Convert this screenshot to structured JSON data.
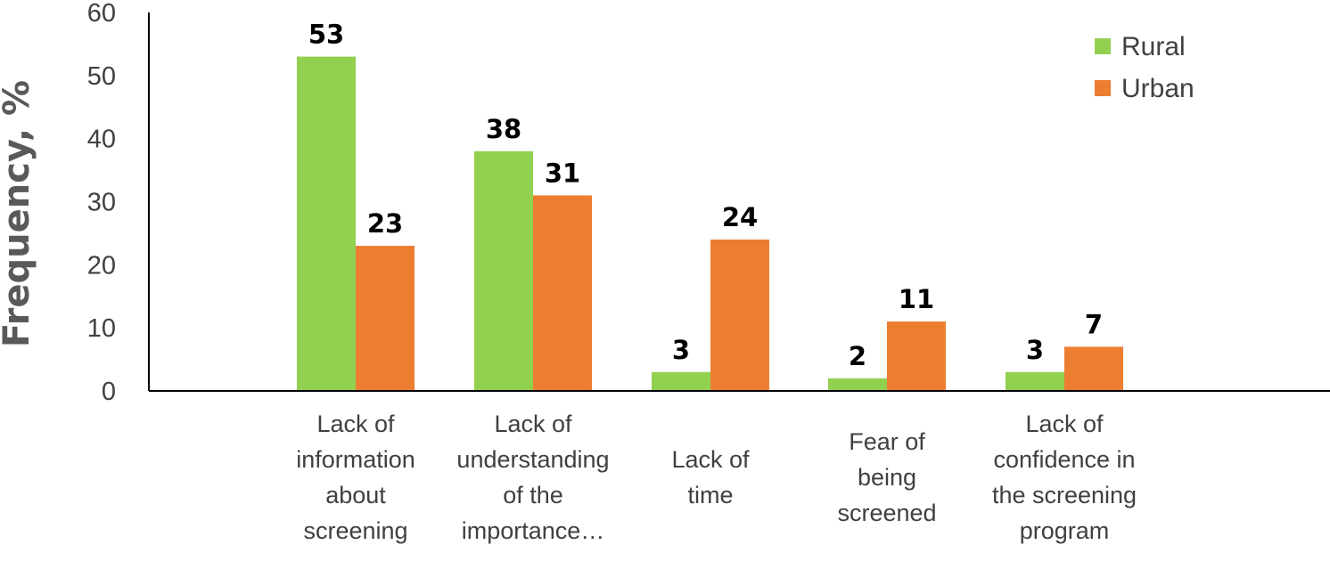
{
  "chart_data": {
    "type": "bar",
    "title": "",
    "xlabel": "",
    "ylabel": "Frequency, %",
    "ylim": [
      0,
      60
    ],
    "yticks": [
      0,
      10,
      20,
      30,
      40,
      50,
      60
    ],
    "categories": [
      [
        "Lack of",
        "information",
        "about",
        "screening"
      ],
      [
        "Lack of",
        "understanding",
        "of the",
        "importance…"
      ],
      [
        "Lack of",
        "time"
      ],
      [
        "Fear of",
        "being",
        "screened"
      ],
      [
        "Lack of",
        "confidence in",
        "the screening",
        "program"
      ]
    ],
    "series": [
      {
        "name": "Rural",
        "color": "#92d050",
        "values": [
          53,
          38,
          3,
          2,
          3
        ]
      },
      {
        "name": "Urban",
        "color": "#ed7d31",
        "values": [
          23,
          31,
          24,
          11,
          7
        ]
      }
    ],
    "data_labels": true,
    "legend_position": "top-right",
    "grid": false
  }
}
